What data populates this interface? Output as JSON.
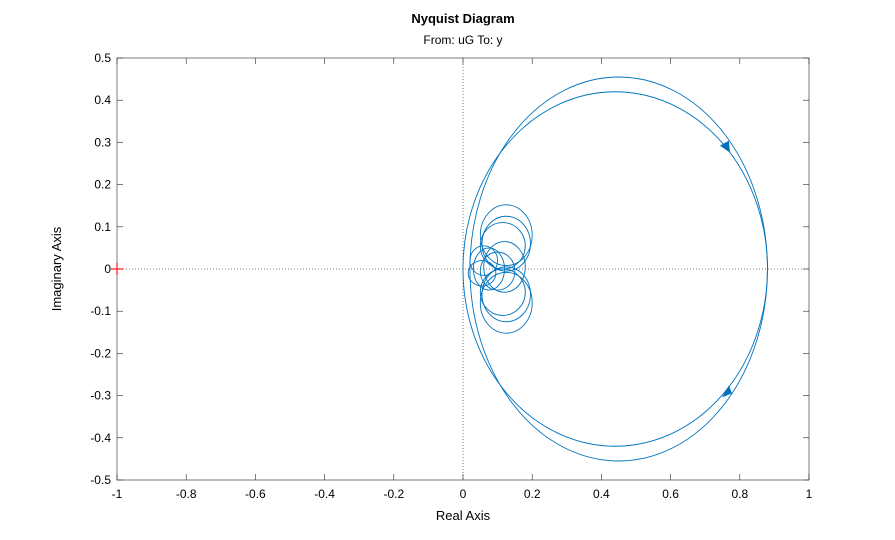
{
  "chart_data": {
    "type": "line",
    "title": "Nyquist Diagram",
    "subtitle": "From: uG  To: y",
    "xlabel": "Real Axis",
    "ylabel": "Imaginary Axis",
    "xlim": [
      -1,
      1
    ],
    "ylim": [
      -0.5,
      0.5
    ],
    "xticks": [
      -1,
      -0.8,
      -0.6,
      -0.4,
      -0.2,
      0,
      0.2,
      0.4,
      0.6,
      0.8,
      1
    ],
    "yticks": [
      -0.5,
      -0.4,
      -0.3,
      -0.2,
      -0.1,
      0,
      0.1,
      0.2,
      0.3,
      0.4,
      0.5
    ],
    "xticklabels": [
      "-1",
      "-0.8",
      "-0.6",
      "-0.4",
      "-0.2",
      "0",
      "0.2",
      "0.4",
      "0.6",
      "0.8",
      "1"
    ],
    "yticklabels": [
      "-0.5",
      "-0.4",
      "-0.3",
      "-0.2",
      "-0.1",
      "0",
      "0.1",
      "0.2",
      "0.3",
      "0.4",
      "0.5"
    ],
    "grid": false,
    "zero_lines": true,
    "line_color": "#0072bd",
    "critical_point": {
      "x": -1,
      "y": 0,
      "color": "#ff3333"
    },
    "loops": [
      {
        "cx": 0.44,
        "cy": 0,
        "rx": 0.44,
        "ry": 0.42
      },
      {
        "cx": 0.45,
        "cy": 0,
        "rx": 0.43,
        "ry": 0.455
      },
      {
        "cx": 0.125,
        "cy": 0.08,
        "rx": 0.075,
        "ry": 0.072
      },
      {
        "cx": 0.125,
        "cy": 0.06,
        "rx": 0.07,
        "ry": 0.065
      },
      {
        "cx": 0.115,
        "cy": 0.055,
        "rx": 0.065,
        "ry": 0.055
      },
      {
        "cx": 0.125,
        "cy": -0.08,
        "rx": 0.075,
        "ry": 0.072
      },
      {
        "cx": 0.125,
        "cy": -0.06,
        "rx": 0.07,
        "ry": 0.065
      },
      {
        "cx": 0.115,
        "cy": -0.055,
        "rx": 0.065,
        "ry": 0.055
      },
      {
        "cx": 0.12,
        "cy": 0.005,
        "rx": 0.06,
        "ry": 0.06
      },
      {
        "cx": 0.1,
        "cy": -0.005,
        "rx": 0.05,
        "ry": 0.045
      },
      {
        "cx": 0.06,
        "cy": 0.02,
        "rx": 0.04,
        "ry": 0.035
      },
      {
        "cx": 0.055,
        "cy": -0.01,
        "rx": 0.04,
        "ry": 0.03
      },
      {
        "cx": 0.075,
        "cy": 0.0,
        "rx": 0.045,
        "ry": 0.05
      }
    ],
    "arrows": [
      {
        "x": 0.76,
        "y": 0.29,
        "direction": "down"
      },
      {
        "x": 0.76,
        "y": -0.29,
        "direction": "down-left"
      }
    ]
  }
}
